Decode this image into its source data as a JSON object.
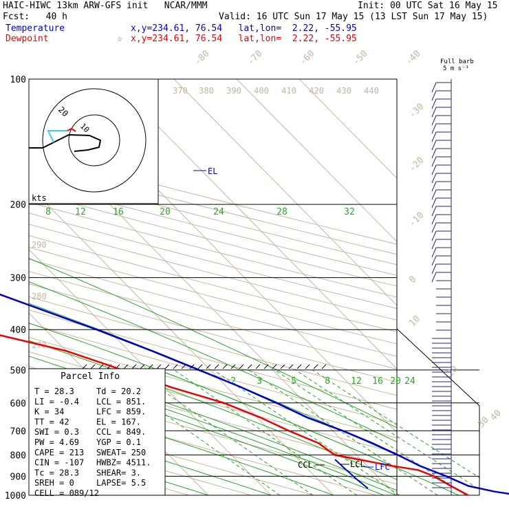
{
  "header": {
    "line1_left": "HAIC-HIWC 13km ARW-GFS init   NCAR/MMM",
    "line1_right": "Init: 00 UTC Sat 16 May 15",
    "line2_left": "Fcst:   40 h",
    "line2_right": "Valid: 16 UTC Sun 17 May 15 (13 LST Sun 17 May 15)",
    "temp_label": "Temperature",
    "temp_loc": "x,y=234.61, 76.54   lat,lon=  2.22, -55.95",
    "dew_label": "Dewpoint",
    "dew_star": "☆",
    "dew_loc": "x,y=234.61, 76.54   lat,lon=  2.22, -55.95",
    "barb_title1": "Full barb",
    "barb_title2": "5 m s⁻¹"
  },
  "colors": {
    "temperature": "#0000cc",
    "dewpoint": "#ee0000",
    "mixing_ratio": "#22aa22",
    "dry_adiabat": "#c8b49c",
    "isotherm": "#c8b49c",
    "isobar": "#000000",
    "wind": "#202080"
  },
  "chart_data": {
    "type": "line",
    "title": "Skew-T log-P sounding",
    "pressure_levels": [
      "100",
      "200",
      "300",
      "400",
      "500",
      "600",
      "700",
      "800",
      "900",
      "1000"
    ],
    "isotherm_labels": [
      "-80",
      "-70",
      "-60",
      "-50",
      "-40",
      "-30",
      "-20",
      "-10",
      "0",
      "10",
      "20",
      "30",
      "40"
    ],
    "theta_labels": [
      "370",
      "380",
      "390",
      "400",
      "410",
      "420",
      "430",
      "440",
      "290",
      "280",
      "270"
    ],
    "mixing_ratio_upper": [
      "8",
      "12",
      "16",
      "20",
      "24",
      "28",
      "32"
    ],
    "mixing_ratio_lower": [
      "2",
      "3",
      "5",
      "8",
      "12",
      "16",
      "20",
      "24"
    ],
    "level_labels": {
      "el": "EL",
      "ccl": "CCL",
      "lcl": "LCL",
      "lfc": "LFC"
    },
    "series": [
      {
        "name": "Temperature",
        "points": [
          [
            1000,
            29.5
          ],
          [
            980,
            26.3
          ],
          [
            950,
            23.0
          ],
          [
            900,
            21.0
          ],
          [
            850,
            18.4
          ],
          [
            800,
            16.6
          ],
          [
            750,
            14.4
          ],
          [
            700,
            11.6
          ],
          [
            650,
            8.0
          ],
          [
            600,
            5.4
          ],
          [
            550,
            2.2
          ],
          [
            500,
            -1.8
          ],
          [
            450,
            -6.3
          ],
          [
            400,
            -11.8
          ],
          [
            350,
            -18.6
          ],
          [
            300,
            -26.4
          ],
          [
            250,
            -35.5
          ],
          [
            200,
            -46.0
          ],
          [
            175,
            -51.0
          ],
          [
            150,
            -57.0
          ],
          [
            130,
            -63.0
          ],
          [
            115,
            -70.0
          ],
          [
            100,
            -76.0
          ]
        ]
      },
      {
        "name": "Dewpoint",
        "points": [
          [
            1000,
            21.5
          ],
          [
            950,
            20.2
          ],
          [
            900,
            19.0
          ],
          [
            870,
            17.5
          ],
          [
            850,
            14.0
          ],
          [
            800,
            6.5
          ],
          [
            750,
            5.8
          ],
          [
            700,
            3.0
          ],
          [
            650,
            0.5
          ],
          [
            600,
            -3.0
          ],
          [
            550,
            -9.0
          ],
          [
            500,
            -14.0
          ],
          [
            450,
            -20.0
          ],
          [
            400,
            -31.0
          ],
          [
            370,
            -42.0
          ],
          [
            350,
            -48.0
          ],
          [
            300,
            -45.0
          ],
          [
            280,
            -52.0
          ],
          [
            250,
            -57.0
          ],
          [
            220,
            -66.0
          ],
          [
            200,
            -76.0
          ],
          [
            185,
            -80.0
          ],
          [
            165,
            -79.0
          ],
          [
            150,
            -80.0
          ],
          [
            130,
            -81.0
          ],
          [
            115,
            -80.0
          ],
          [
            100,
            -81.0
          ]
        ]
      }
    ],
    "parcel_info": {
      "title": "Parcel Info",
      "rows": [
        [
          "T  =    28.3",
          "Td =  20.2"
        ],
        [
          "LI =   -0.4",
          "LCL =  851."
        ],
        [
          "K  =     34",
          "LFC =  859."
        ],
        [
          "TT =     42",
          "EL  =  167."
        ],
        [
          "SWI =   0.3",
          "CCL =  849."
        ],
        [
          "PW =   4.69",
          "YGP =   0.1"
        ],
        [
          "CAPE =  213",
          "SWEAT=  250"
        ],
        [
          "CIN =  -107",
          "HWBZ= 4511."
        ],
        [
          "Tc =   28.3",
          "SHEAR=   3."
        ],
        [
          "SREH =    0",
          "LAPSE=   5.5"
        ],
        [
          "CELL = 089/12",
          ""
        ]
      ]
    },
    "hodograph": {
      "ring_label": "20",
      "ring_label2": "10",
      "axis_label": "kts"
    }
  }
}
